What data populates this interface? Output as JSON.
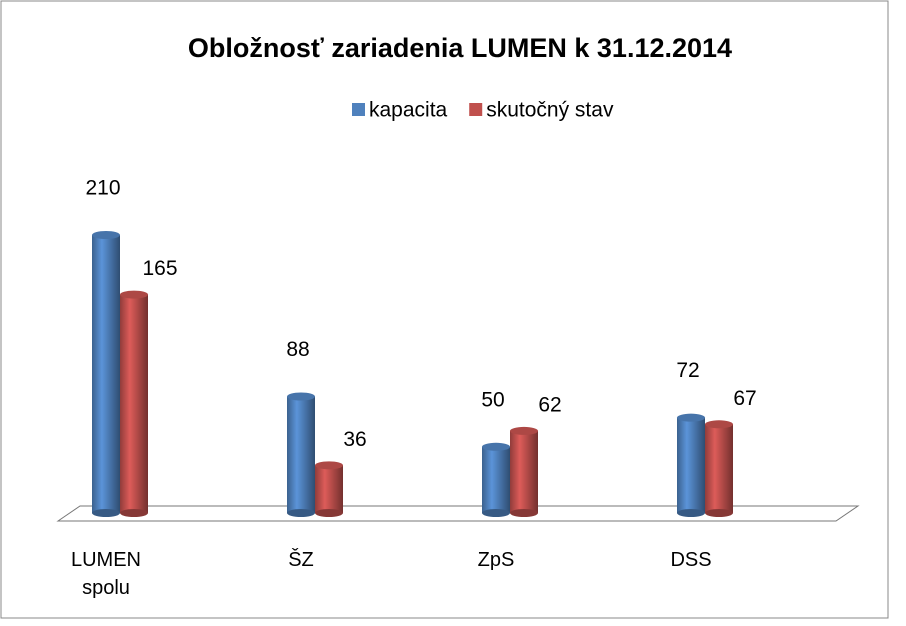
{
  "chart_data": {
    "type": "bar3d",
    "title": "Obložnosť zariadenia LUMEN k 31.12.2014",
    "categories": [
      "LUMEN spolu",
      "ŠZ",
      "ZpS",
      "DSS"
    ],
    "series": [
      {
        "name": "kapacita",
        "color": "#4f81bd",
        "values": [
          210,
          88,
          50,
          72
        ]
      },
      {
        "name": "skutočný stav",
        "color": "#c0504d",
        "values": [
          165,
          36,
          62,
          67
        ]
      }
    ],
    "legend": "top"
  }
}
